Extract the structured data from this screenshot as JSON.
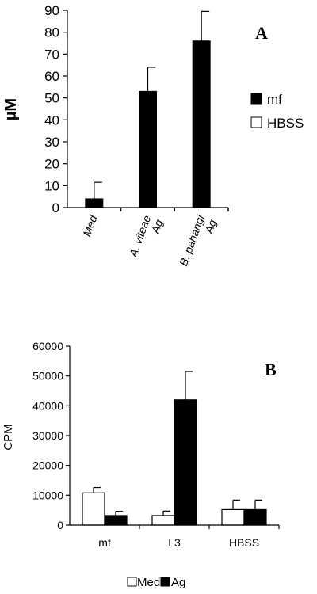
{
  "chart_data": [
    {
      "type": "bar",
      "panel_label": "A",
      "ylabel": "µM",
      "ylim": [
        0,
        90
      ],
      "yticks": [
        "0",
        "10",
        "20",
        "30",
        "40",
        "50",
        "60",
        "70",
        "80",
        "90"
      ],
      "categories": [
        [
          "Med"
        ],
        [
          "A. viteae",
          "Ag"
        ],
        [
          "B. pahangi",
          "Ag"
        ]
      ],
      "series": [
        {
          "name": "mf",
          "color": "#000000",
          "values": [
            4,
            53,
            76
          ],
          "errors": [
            7.5,
            11,
            13.5
          ]
        },
        {
          "name": "HBSS",
          "color": "#ffffff",
          "values": [
            null,
            null,
            null
          ],
          "errors": [
            null,
            null,
            null
          ]
        }
      ],
      "legend": [
        "mf",
        "HBSS"
      ],
      "legend_position": "right",
      "grid": false
    },
    {
      "type": "bar",
      "panel_label": "B",
      "ylabel": "CPM",
      "ylim": [
        0,
        60000
      ],
      "yticks": [
        "0",
        "10000",
        "20000",
        "30000",
        "40000",
        "50000",
        "60000"
      ],
      "categories": [
        "mf",
        "L3",
        "HBSS"
      ],
      "series": [
        {
          "name": "Med",
          "color": "#ffffff",
          "values": [
            10800,
            3200,
            5200
          ],
          "errors": [
            1800,
            1500,
            3200
          ]
        },
        {
          "name": "Ag",
          "color": "#000000",
          "values": [
            3200,
            42000,
            5200
          ],
          "errors": [
            1400,
            9500,
            3200
          ]
        }
      ],
      "legend": [
        "Med",
        "Ag"
      ],
      "legend_position": "bottom",
      "grid": false
    }
  ]
}
